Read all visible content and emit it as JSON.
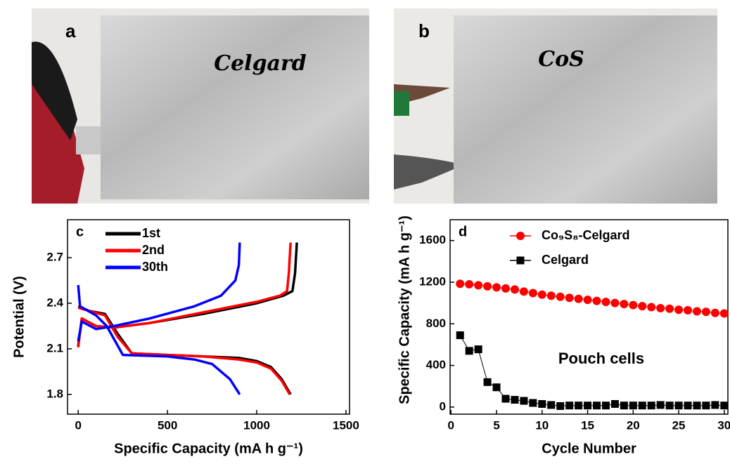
{
  "photos": [
    {
      "label": "a",
      "handwriting": "Celgard"
    },
    {
      "label": "b",
      "handwriting": "CoS"
    }
  ],
  "chart_data": [
    {
      "type": "line",
      "panel_label": "c",
      "x_label": "Specific Capacity (mA h g⁻¹)",
      "y_label": "Potential (V)",
      "xlim": [
        -60,
        1520
      ],
      "ylim": [
        1.67,
        2.95
      ],
      "xticks": [
        0,
        500,
        1000,
        1500
      ],
      "yticks": [
        1.8,
        2.1,
        2.4,
        2.7
      ],
      "legend": "upper left",
      "series": [
        {
          "name": "1st",
          "color": "#000000",
          "x": [
            0,
            60,
            150,
            220,
            300,
            500,
            700,
            900,
            1000,
            1080,
            1140,
            1190,
            null,
            0,
            20,
            100,
            200,
            400,
            700,
            1000,
            1150,
            1200,
            1215,
            1225
          ],
          "values": [
            2.38,
            2.35,
            2.33,
            2.2,
            2.07,
            2.06,
            2.05,
            2.04,
            2.02,
            1.98,
            1.9,
            1.8,
            null,
            2.12,
            2.3,
            2.25,
            2.24,
            2.27,
            2.33,
            2.4,
            2.45,
            2.48,
            2.6,
            2.8
          ]
        },
        {
          "name": "2nd",
          "color": "#ff0000",
          "x": [
            0,
            60,
            150,
            220,
            300,
            500,
            700,
            900,
            1000,
            1080,
            1140,
            1185,
            null,
            0,
            20,
            100,
            200,
            400,
            700,
            1000,
            1130,
            1170,
            1180,
            1190
          ],
          "values": [
            2.37,
            2.35,
            2.32,
            2.18,
            2.07,
            2.06,
            2.05,
            2.03,
            2.01,
            1.97,
            1.89,
            1.8,
            null,
            2.11,
            2.3,
            2.25,
            2.24,
            2.27,
            2.34,
            2.41,
            2.45,
            2.48,
            2.6,
            2.8
          ]
        },
        {
          "name": "30th",
          "color": "#0000ff",
          "x": [
            0,
            10,
            100,
            160,
            250,
            500,
            650,
            750,
            850,
            905,
            null,
            0,
            20,
            100,
            200,
            400,
            650,
            800,
            880,
            900,
            905
          ],
          "values": [
            2.52,
            2.38,
            2.32,
            2.25,
            2.06,
            2.05,
            2.03,
            2.0,
            1.9,
            1.8,
            null,
            2.15,
            2.28,
            2.23,
            2.25,
            2.3,
            2.38,
            2.45,
            2.55,
            2.65,
            2.8
          ]
        }
      ]
    },
    {
      "type": "line",
      "panel_label": "d",
      "x_label": "Cycle Number",
      "y_label": "Specific Capacity (mA h g⁻¹)",
      "xlim": [
        -0.1,
        30.4
      ],
      "ylim": [
        -68,
        1800
      ],
      "xticks": [
        0,
        5,
        10,
        15,
        20,
        25,
        30
      ],
      "yticks": [
        0,
        400,
        800,
        1200,
        1600
      ],
      "legend": "upper left",
      "annotation": "Pouch cells",
      "x": [
        1,
        2,
        3,
        4,
        5,
        6,
        7,
        8,
        9,
        10,
        11,
        12,
        13,
        14,
        15,
        16,
        17,
        18,
        19,
        20,
        21,
        22,
        23,
        24,
        25,
        26,
        27,
        28,
        29,
        30
      ],
      "series": [
        {
          "name": "Co₉S₈-Celgard",
          "color": "#ff0000",
          "marker": "circle",
          "values": [
            1185,
            1180,
            1170,
            1160,
            1150,
            1140,
            1130,
            1110,
            1095,
            1080,
            1070,
            1060,
            1050,
            1040,
            1030,
            1020,
            1010,
            1000,
            990,
            980,
            970,
            960,
            950,
            945,
            935,
            930,
            920,
            915,
            905,
            900
          ]
        },
        {
          "name": "Celgard",
          "color": "#000000",
          "marker": "square",
          "values": [
            690,
            540,
            555,
            240,
            190,
            80,
            70,
            60,
            40,
            30,
            20,
            10,
            15,
            15,
            15,
            15,
            15,
            30,
            15,
            15,
            15,
            15,
            20,
            15,
            15,
            15,
            15,
            15,
            20,
            15
          ]
        }
      ]
    }
  ]
}
